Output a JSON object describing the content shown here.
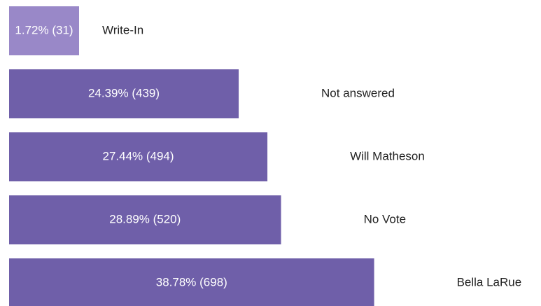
{
  "chart_data": {
    "type": "bar",
    "orientation": "horizontal",
    "categories": [
      "Write-In",
      "Not answered",
      "Will Matheson",
      "No Vote",
      "Bella LaRue"
    ],
    "values": [
      1.72,
      24.39,
      27.44,
      28.89,
      38.78
    ],
    "value_labels": [
      "1.72% (31)",
      "24.39% (439)",
      "27.44% (494)",
      "28.89% (520)",
      "38.78% (698)"
    ],
    "colors": [
      "#9988c8",
      "#6f5fa9",
      "#6f5fa9",
      "#6f5fa9",
      "#6f5fa9"
    ]
  }
}
